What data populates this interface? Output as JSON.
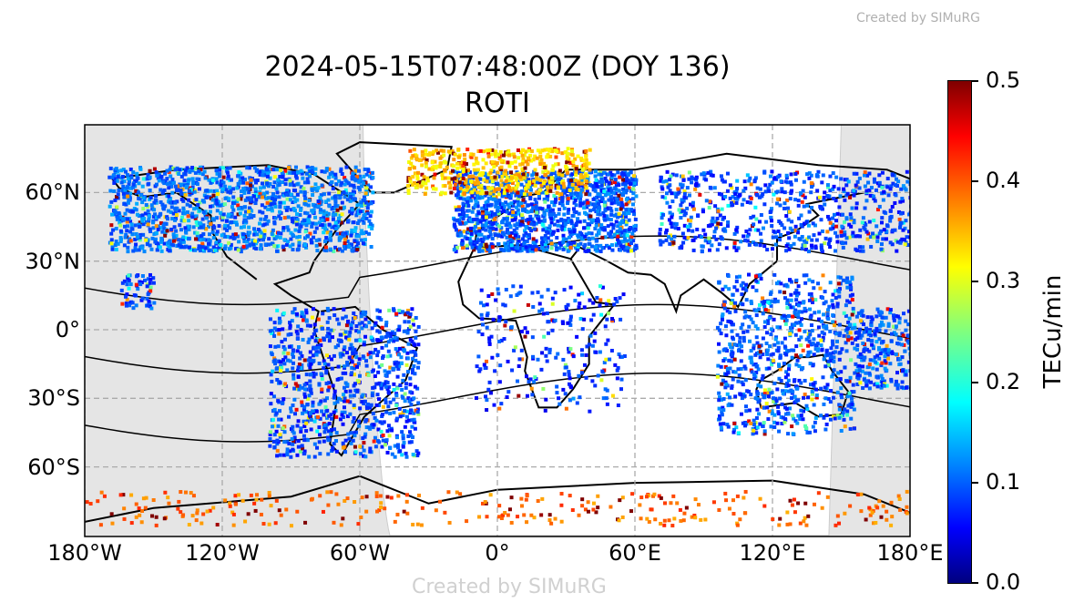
{
  "title": {
    "line1": "2024-05-15T07:48:00Z (DOY 136)",
    "line2": "ROTI"
  },
  "watermark": "Created by SIMuRG",
  "map": {
    "projection": "PlateCarree",
    "lon_ticks": [
      "180°W",
      "120°W",
      "60°W",
      "0°",
      "60°E",
      "120°E",
      "180°E"
    ],
    "lat_ticks": [
      "60°N",
      "30°N",
      "0°",
      "30°S",
      "60°S"
    ],
    "lon_values": [
      -180,
      -120,
      -60,
      0,
      60,
      120,
      180
    ],
    "lat_values": [
      60,
      30,
      0,
      -30,
      -60
    ],
    "grid": "dashed",
    "night_color": "#e5e5e5"
  },
  "colorbar": {
    "label": "TECu/min",
    "colormap": "jet",
    "range": [
      0.0,
      0.5
    ],
    "ticks": [
      "0.0",
      "0.1",
      "0.2",
      "0.3",
      "0.4",
      "0.5"
    ]
  }
}
